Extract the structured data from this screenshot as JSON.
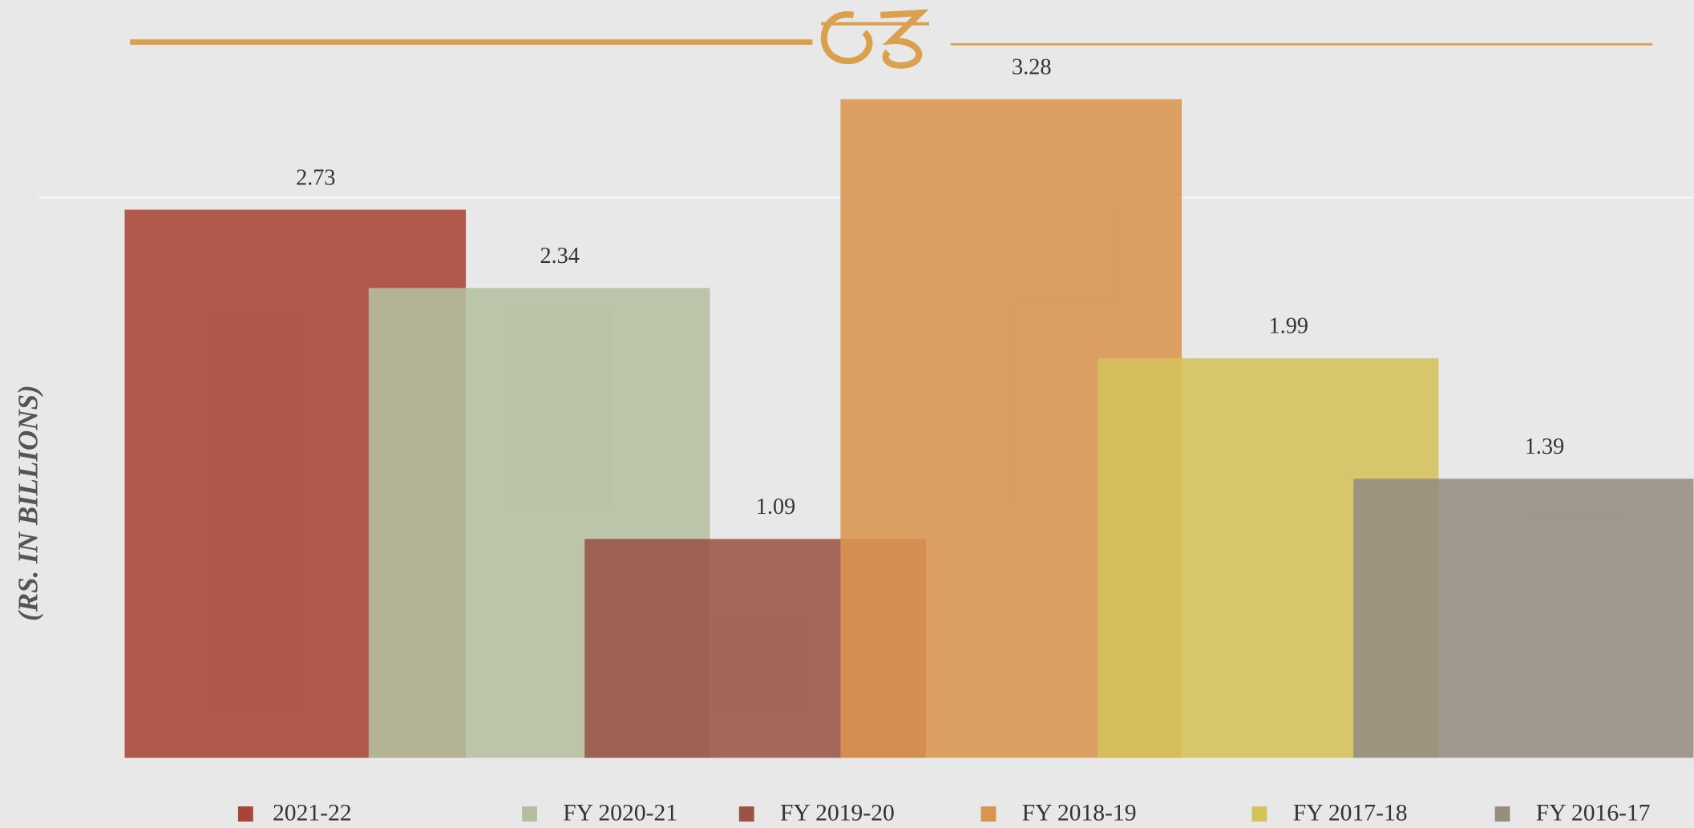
{
  "chart_data": {
    "type": "bar",
    "y_label": "(RS. IN BILLIONS)",
    "series": [
      {
        "name": "2021-22",
        "color": "#a84535",
        "values": [
          2.73
        ]
      },
      {
        "name": "FY 2020-21",
        "color": "#b5bf9f",
        "values": [
          2.34
        ]
      },
      {
        "name": "FY 2019-20",
        "color": "#9a5445",
        "values": [
          1.09
        ]
      },
      {
        "name": "FY 2018-19",
        "color": "#d9944f",
        "values": [
          3.28
        ]
      },
      {
        "name": "FY 2017-18",
        "color": "#d4c25a",
        "values": [
          1.99
        ]
      },
      {
        "name": "FY 2016-17",
        "color": "#968d7f",
        "values": [
          1.39
        ]
      }
    ]
  }
}
